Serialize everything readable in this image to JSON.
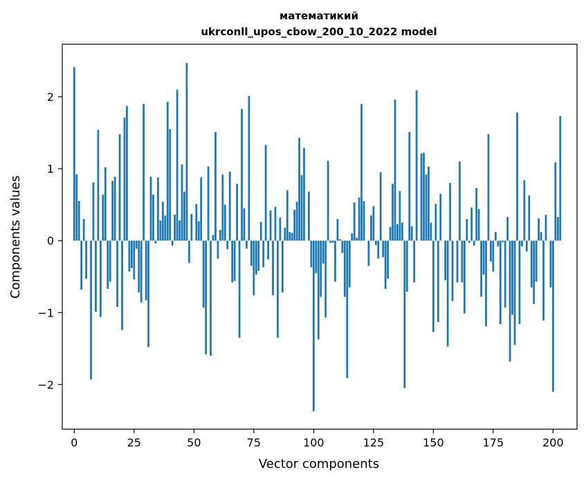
{
  "chart_data": {
    "type": "bar",
    "title_line1": "математикий",
    "title_line2": "ukrconll_upos_cbow_200_10_2022 model",
    "xlabel": "Vector components",
    "ylabel": "Components values",
    "xlim": [
      -5,
      210
    ],
    "ylim": [
      -2.62,
      2.73
    ],
    "xticks": [
      0,
      25,
      50,
      75,
      100,
      125,
      150,
      175,
      200
    ],
    "xtick_labels": [
      "0",
      "25",
      "50",
      "75",
      "100",
      "125",
      "150",
      "175",
      "200"
    ],
    "yticks": [
      -2,
      -1,
      0,
      1,
      2
    ],
    "ytick_labels": [
      "−2",
      "−1",
      "0",
      "1",
      "2"
    ],
    "bar_color": "#1f77b4",
    "values": [
      2.41,
      0.92,
      0.55,
      -0.68,
      0.3,
      -0.53,
      0.0,
      -1.93,
      0.81,
      -0.99,
      1.54,
      -1.06,
      0.64,
      1.02,
      -0.67,
      -0.57,
      0.83,
      0.89,
      -0.92,
      1.48,
      -1.24,
      1.71,
      1.87,
      -0.43,
      -0.38,
      -0.54,
      -0.11,
      -0.72,
      -0.86,
      1.9,
      -0.83,
      -1.48,
      0.89,
      0.64,
      -0.04,
      0.88,
      0.28,
      0.54,
      0.35,
      1.93,
      1.55,
      -0.07,
      0.36,
      2.1,
      0.28,
      1.06,
      0.68,
      2.47,
      -0.31,
      0.37,
      0.0,
      0.51,
      0.27,
      0.88,
      -0.93,
      -1.58,
      1.03,
      -1.6,
      0.08,
      1.51,
      -0.25,
      0.15,
      0.92,
      0.5,
      -0.12,
      0.96,
      -0.58,
      -0.56,
      0.79,
      -1.35,
      1.83,
      0.45,
      -0.11,
      2.01,
      -0.35,
      -0.76,
      -0.47,
      -0.42,
      0.26,
      -0.37,
      1.33,
      -0.26,
      0.42,
      -0.76,
      0.47,
      -1.35,
      0.32,
      -0.72,
      0.18,
      0.7,
      0.12,
      0.11,
      0.43,
      0.54,
      1.43,
      0.91,
      1.29,
      0.0,
      0.68,
      -0.37,
      -2.37,
      -0.45,
      -1.37,
      -0.78,
      -0.32,
      -1.07,
      1.11,
      -0.03,
      -0.03,
      -0.57,
      0.3,
      0.02,
      -0.17,
      -0.78,
      -1.91,
      -0.65,
      0.1,
      0.53,
      0.04,
      0.6,
      1.9,
      0.55,
      0.0,
      -0.35,
      0.35,
      0.48,
      -0.06,
      -0.25,
      0.95,
      -0.23,
      -0.67,
      -0.53,
      0.19,
      0.79,
      1.96,
      0.23,
      0.69,
      0.25,
      -2.05,
      -0.71,
      1.51,
      0.2,
      -0.58,
      2.09,
      0.0,
      1.21,
      1.22,
      0.92,
      1.03,
      0.25,
      -1.27,
      0.51,
      -1.13,
      0.65,
      0.0,
      -0.55,
      -1.47,
      0.8,
      -0.84,
      0.0,
      -0.58,
      1.1,
      -0.58,
      -1.01,
      0.3,
      -0.03,
      0.46,
      -0.07,
      0.73,
      0.44,
      -0.78,
      -0.47,
      -1.19,
      1.48,
      -0.29,
      -0.43,
      0.12,
      -0.08,
      -1.16,
      -0.02,
      -0.93,
      0.33,
      -1.68,
      -1.03,
      -1.45,
      1.78,
      -1.16,
      -0.08,
      0.84,
      -0.15,
      0.63,
      -0.65,
      -0.88,
      -0.57,
      0.31,
      0.12,
      -1.11,
      0.36,
      0.0,
      -0.65,
      -2.1,
      1.09,
      0.33,
      1.73
    ]
  }
}
